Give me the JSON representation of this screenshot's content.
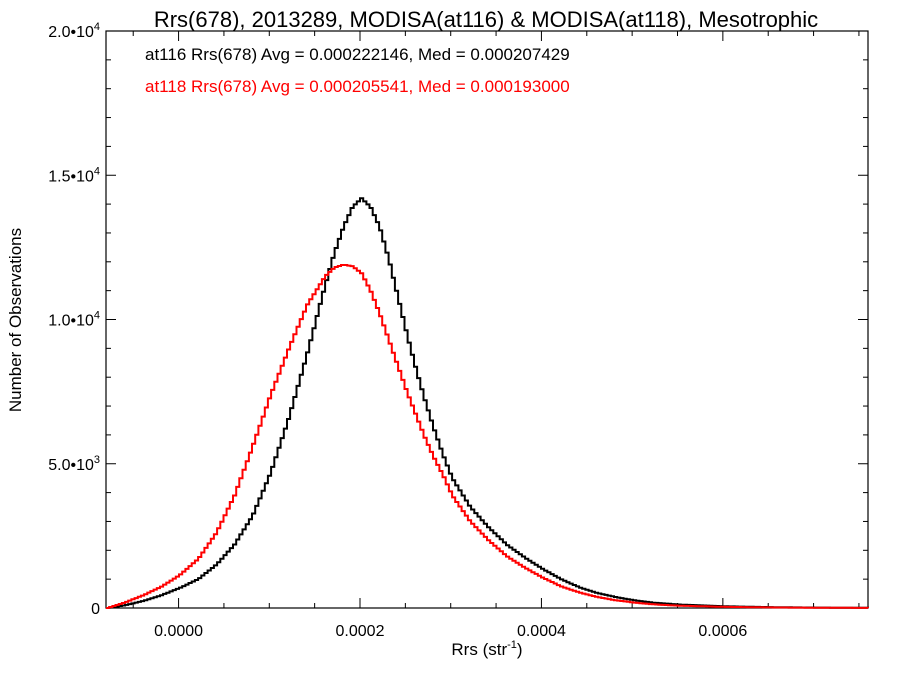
{
  "chart_data": {
    "type": "line",
    "title": "Rrs(678), 2013289, MODISA(at116) & MODISA(at118), Mesotrophic",
    "xlabel": {
      "base": "Rrs (str",
      "sup": "-1",
      "end": ")"
    },
    "ylabel": "Number of Observations",
    "xlim": [
      -8e-05,
      0.00076
    ],
    "ylim": [
      0,
      20000
    ],
    "xticks": [
      {
        "value": 0.0,
        "label": "0.0000"
      },
      {
        "value": 0.0002,
        "label": "0.0002"
      },
      {
        "value": 0.0004,
        "label": "0.0004"
      },
      {
        "value": 0.0006,
        "label": "0.0006"
      }
    ],
    "yticks": [
      {
        "value": 0,
        "mant": "0",
        "exp": ""
      },
      {
        "value": 5000,
        "mant": "5.0•10",
        "exp": "3"
      },
      {
        "value": 10000,
        "mant": "1.0•10",
        "exp": "4"
      },
      {
        "value": 15000,
        "mant": "1.5•10",
        "exp": "4"
      },
      {
        "value": 20000,
        "mant": "2.0•10",
        "exp": "4"
      }
    ],
    "annotations": [
      {
        "text": "at116 Rrs(678) Avg = 0.000222146, Med = 0.000207429",
        "color": "#000000"
      },
      {
        "text": "at118 Rrs(678) Avg = 0.000205541, Med = 0.000193000",
        "color": "#ff0000"
      }
    ],
    "x": [
      -8e-05,
      -6e-05,
      -4e-05,
      -2e-05,
      0.0,
      2e-05,
      4e-05,
      6e-05,
      8e-05,
      0.0001,
      0.00012,
      0.00014,
      0.00016,
      0.00017,
      0.00018,
      0.00019,
      0.0002,
      0.00021,
      0.00022,
      0.00023,
      0.00024,
      0.00025,
      0.00026,
      0.00027,
      0.00028,
      0.00029,
      0.0003,
      0.00032,
      0.00034,
      0.00036,
      0.00038,
      0.0004,
      0.00042,
      0.00044,
      0.00046,
      0.00048,
      0.0005,
      0.00052,
      0.00055,
      0.0006,
      0.00065,
      0.0007,
      0.00076
    ],
    "series": [
      {
        "name": "at116",
        "color": "#000000",
        "values": [
          0,
          100,
          250,
          450,
          700,
          1000,
          1500,
          2200,
          3200,
          4700,
          6600,
          8800,
          11200,
          12300,
          13200,
          13900,
          14200,
          13900,
          13200,
          12100,
          10800,
          9500,
          8300,
          7200,
          6200,
          5300,
          4500,
          3500,
          2800,
          2200,
          1750,
          1350,
          1000,
          720,
          520,
          380,
          270,
          190,
          120,
          60,
          30,
          15,
          5
        ]
      },
      {
        "name": "at118",
        "color": "#ff0000",
        "values": [
          0,
          200,
          450,
          750,
          1150,
          1700,
          2600,
          3900,
          5600,
          7400,
          9000,
          10500,
          11500,
          11800,
          11900,
          11850,
          11600,
          11000,
          10200,
          9300,
          8400,
          7500,
          6700,
          5900,
          5200,
          4600,
          3900,
          3000,
          2350,
          1800,
          1400,
          1050,
          750,
          540,
          380,
          270,
          190,
          130,
          80,
          40,
          20,
          10,
          3
        ]
      }
    ]
  }
}
